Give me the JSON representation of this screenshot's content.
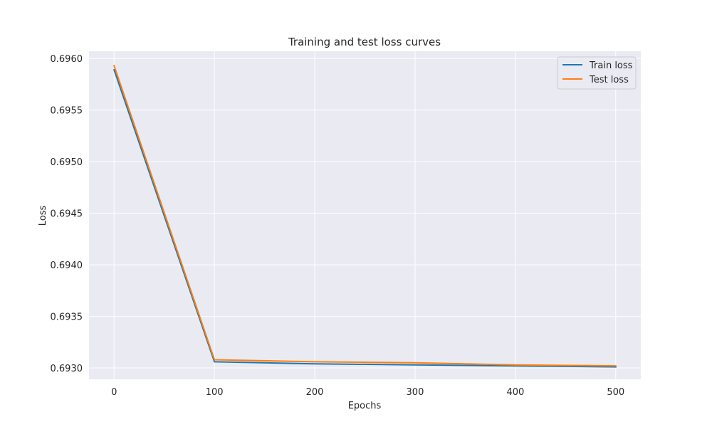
{
  "chart_data": {
    "type": "line",
    "title": "Training and test loss curves",
    "xlabel": "Epochs",
    "ylabel": "Loss",
    "x": [
      0,
      100,
      200,
      300,
      400,
      500
    ],
    "series": [
      {
        "name": "Train loss",
        "color": "#1f77b4",
        "values": [
          0.69589,
          0.69306,
          0.69304,
          0.69303,
          0.69302,
          0.69301
        ]
      },
      {
        "name": "Test loss",
        "color": "#ff7f0e",
        "values": [
          0.69593,
          0.69308,
          0.69306,
          0.69305,
          0.69303,
          0.69302
        ]
      }
    ],
    "xlim": [
      -25,
      525
    ],
    "ylim": [
      0.69289,
      0.69607
    ],
    "xticks": [
      0,
      100,
      200,
      300,
      400,
      500
    ],
    "xtick_labels": [
      "0",
      "100",
      "200",
      "300",
      "400",
      "500"
    ],
    "yticks": [
      0.693,
      0.6935,
      0.694,
      0.6945,
      0.695,
      0.6955,
      0.696
    ],
    "ytick_labels": [
      "0.6930",
      "0.6935",
      "0.6940",
      "0.6945",
      "0.6950",
      "0.6955",
      "0.6960"
    ],
    "grid": true,
    "legend_position": "top-right",
    "style": {
      "plot_background": "#eaeaf2",
      "grid_color": "#ffffff",
      "text_color": "#262626"
    }
  }
}
